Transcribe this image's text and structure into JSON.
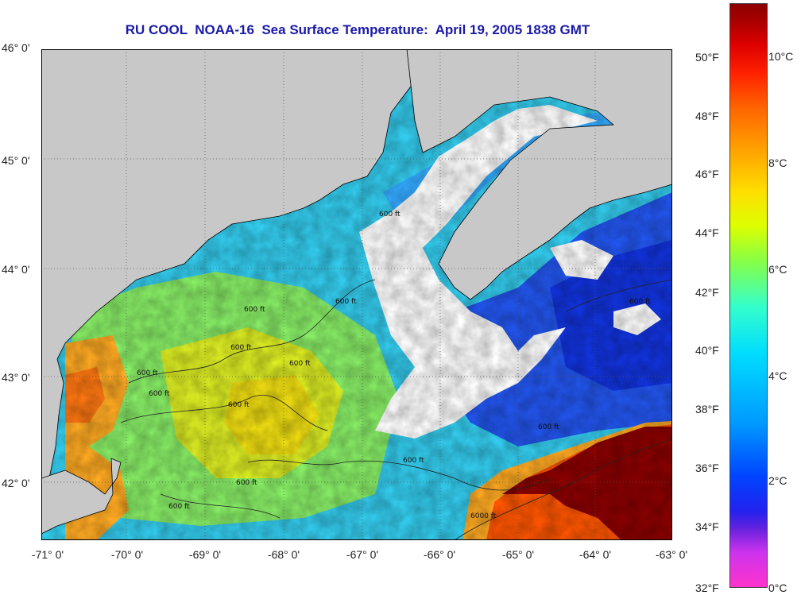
{
  "title": "RU COOL  NOAA-16  Sea Surface Temperature:  April 19, 2005 1838 GMT",
  "latitude_labels": [
    "46° 0'",
    "45° 0'",
    "44° 0'",
    "43° 0'",
    "42° 0'"
  ],
  "longitude_labels": [
    "-71° 0'",
    "-70° 0'",
    "-69° 0'",
    "-68° 0'",
    "-67° 0'",
    "-66° 0'",
    "-65° 0'",
    "-64° 0'",
    "-63° 0'"
  ],
  "colorbar": {
    "fahrenheit_labels": [
      "50°F",
      "48°F",
      "46°F",
      "44°F",
      "42°F",
      "40°F",
      "38°F",
      "36°F",
      "34°F",
      "32°F"
    ],
    "celsius_labels": [
      "10°C",
      "8°C",
      "6°C",
      "4°C",
      "2°C",
      "0°C"
    ]
  },
  "contour_labels": [
    "600 ft",
    "600 ft",
    "600 ft",
    "600 ft",
    "600 ft",
    "600 ft",
    "600 ft",
    "600 ft",
    "600 ft",
    "600 ft",
    "600 ft",
    "600 ft",
    "600 ft",
    "6000 ft"
  ],
  "colors": {
    "title": "#1a1aa8",
    "land": "#c8c8c8",
    "cloud": "#ffffff",
    "warm_gulf_stream": "#8b0000",
    "cold_scotian_shelf": "#1133dd"
  }
}
